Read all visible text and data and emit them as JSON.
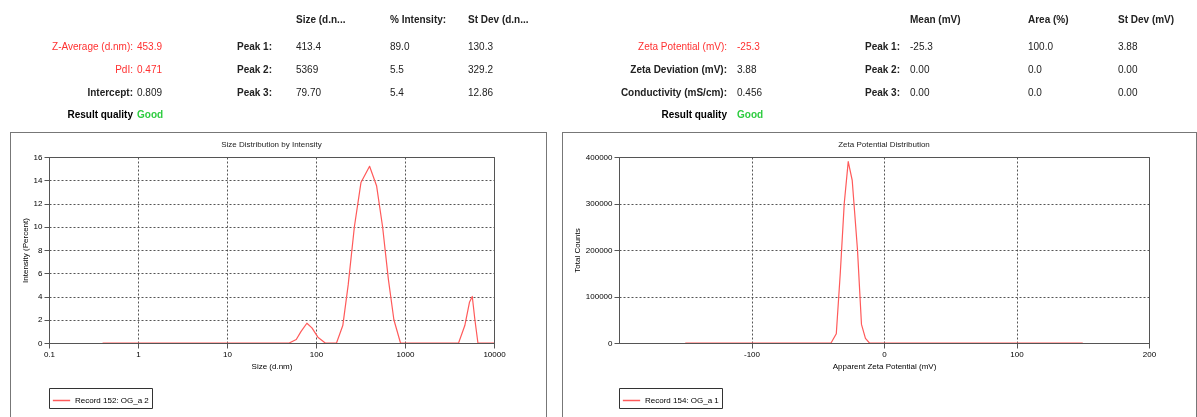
{
  "chart_data": [
    {
      "type": "other",
      "annotations": [
        "Size (d.n...",
        "% Intensity:",
        "St Dev (d.n...",
        "Z-Average (d.nm):",
        "453.9",
        "Peak 1:",
        "413.4",
        "89.0",
        "130.3",
        "PdI:",
        "0.471",
        "Peak 2:",
        "5369",
        "5.5",
        "329.2",
        "Intercept:",
        "0.809",
        "Peak 3:",
        "79.70",
        "5.4",
        "12.86",
        "Result quality",
        "Good"
      ]
    },
    {
      "type": "other",
      "annotations": [
        "Mean (mV)",
        "Area (%)",
        "St Dev (mV)",
        "Zeta Potential (mV):",
        "-25.3",
        "Peak 1:",
        "-25.3",
        "100.0",
        "3.88",
        "Zeta Deviation (mV):",
        "3.88",
        "Peak 2:",
        "0.00",
        "0.0",
        "0.00",
        "Conductivity (mS/cm):",
        "0.456",
        "Peak 3:",
        "0.00",
        "0.0",
        "0.00",
        "Result quality",
        "Good"
      ]
    },
    {
      "type": "line",
      "title": "Size Distribution by Intensity",
      "xlabel": "Size (d.nm)",
      "ylabel": "Intensity (Percent)",
      "log": "x",
      "xlim": [
        0.1,
        10000
      ],
      "xticks": [
        0.1,
        1,
        10,
        100,
        1000,
        10000
      ],
      "ylim": [
        0,
        16
      ],
      "yticks": [
        0,
        2,
        4,
        6,
        8,
        10,
        12,
        14,
        16
      ],
      "grid": true,
      "legend": "bottom",
      "series": [
        {
          "name": "Record 152: OG_a 2",
          "color": "#ff5a5a",
          "x": [
            0.4,
            1,
            10,
            50,
            60,
            68,
            79,
            90,
            105,
            127,
            170,
            200,
            230,
            270,
            320,
            400,
            480,
            560,
            650,
            750,
            890,
            4000,
            4700,
            5300,
            5700,
            6100,
            6600,
            10000
          ],
          "values": [
            0,
            0,
            0,
            0,
            0.3,
            1.0,
            1.7,
            1.3,
            0.5,
            0,
            0,
            1.5,
            5,
            10,
            13.8,
            15.2,
            13.5,
            10,
            5.5,
            2,
            0,
            0,
            1.5,
            3.5,
            4.0,
            2,
            0,
            0
          ]
        }
      ]
    },
    {
      "type": "line",
      "title": "Zeta Potential Distribution",
      "xlabel": "Apparent Zeta Potential (mV)",
      "ylabel": "Total Counts",
      "xlim": [
        -200,
        200
      ],
      "xticks": [
        -100,
        0,
        100,
        200
      ],
      "ylim": [
        0,
        400000
      ],
      "yticks": [
        0,
        100000,
        200000,
        300000,
        400000
      ],
      "grid": true,
      "legend": "bottom",
      "series": [
        {
          "name": "Record 154: OG_a 1",
          "color": "#ff5a5a",
          "x": [
            -150,
            -40,
            -36,
            -33,
            -30,
            -27,
            -24,
            -20,
            -17,
            -14,
            -11,
            150
          ],
          "values": [
            0,
            0,
            20000,
            150000,
            300000,
            390000,
            350000,
            200000,
            40000,
            10000,
            0,
            0
          ]
        }
      ]
    }
  ]
}
